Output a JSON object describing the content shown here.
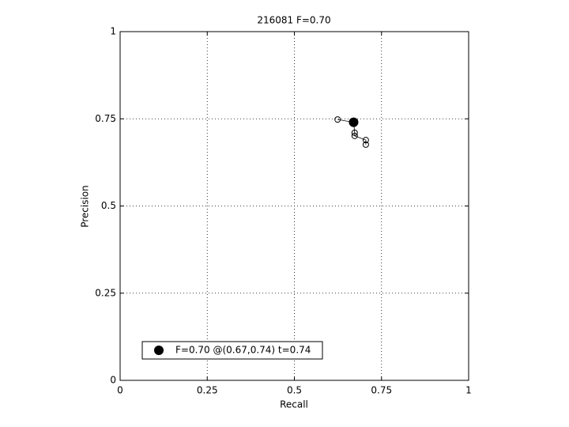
{
  "chart_data": {
    "type": "line",
    "title": "216081 F=0.70",
    "xlabel": "Recall",
    "ylabel": "Precision",
    "xlim": [
      0,
      1
    ],
    "ylim": [
      0,
      1
    ],
    "xticks": [
      0,
      0.25,
      0.5,
      0.75,
      1
    ],
    "yticks": [
      0,
      0.25,
      0.5,
      0.75,
      1
    ],
    "grid": true,
    "legend_position": "lower left",
    "series": [
      {
        "color": "#000000",
        "marker": "small-circle",
        "x": [
          0.624,
          0.67,
          0.673,
          0.673,
          0.705,
          0.705
        ],
        "values": [
          0.748,
          0.74,
          0.71,
          0.701,
          0.689,
          0.676
        ]
      },
      {
        "name": "F=0.70 @(0.67,0.74) t=0.74",
        "color": "#000000",
        "marker": "big-dot",
        "x": [
          0.67
        ],
        "values": [
          0.74
        ]
      }
    ]
  }
}
